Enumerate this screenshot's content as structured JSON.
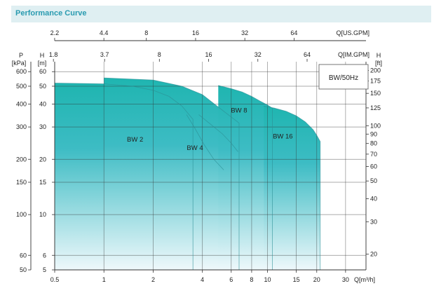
{
  "header": {
    "title": "Performance Curve"
  },
  "colors": {
    "fill_top": "#1fb5b0",
    "fill_bottom": "#eef8fb",
    "header_bg": "#dfeff2",
    "header_text": "#2a9bb0",
    "curve_line": "#2c8f94"
  },
  "chart_data": {
    "type": "area",
    "title": "",
    "legend_label": "BW/50Hz",
    "x_axis_bottom": {
      "label": "Q[m³/h]",
      "scale": "log",
      "ticks": [
        0.5,
        1,
        2,
        4,
        6,
        8,
        10,
        15,
        20,
        30
      ],
      "tick_labels": [
        "0.5",
        "1",
        "2",
        "4",
        "6",
        "8",
        "10",
        "15",
        "20",
        "30"
      ]
    },
    "x_axis_top_1": {
      "label": "Q[US.GPM]",
      "scale": "log",
      "ticks": [
        2.2,
        4.4,
        8,
        16,
        32,
        64
      ],
      "tick_labels": [
        "2.2",
        "4.4",
        "8",
        "16",
        "32",
        "64"
      ]
    },
    "x_axis_top_2": {
      "label": "Q[IM.GPM]",
      "scale": "log",
      "ticks": [
        1.8,
        3.7,
        8,
        16,
        32,
        64
      ],
      "tick_labels": [
        "1.8",
        "3.7",
        "8",
        "16",
        "32",
        "64"
      ]
    },
    "y_axis_left_m": {
      "label": "H",
      "unit": "[m]",
      "scale": "log",
      "ticks": [
        5,
        6,
        10,
        15,
        20,
        30,
        40,
        50,
        60
      ],
      "tick_labels": [
        "5",
        "6",
        "10",
        "15",
        "20",
        "30",
        "40",
        "50",
        "60"
      ]
    },
    "y_axis_left_kpa": {
      "label": "P",
      "unit": "[kPa]",
      "scale": "log",
      "ticks": [
        50,
        60,
        100,
        150,
        200,
        300,
        400,
        500,
        600
      ],
      "tick_labels": [
        "50",
        "60",
        "100",
        "150",
        "200",
        "300",
        "400",
        "500",
        "600"
      ]
    },
    "y_axis_right_ft": {
      "label": "H",
      "unit": "[ft]",
      "scale": "log",
      "ticks": [
        20,
        30,
        40,
        50,
        60,
        70,
        80,
        90,
        100,
        125,
        150,
        175,
        200
      ],
      "tick_labels": [
        "20",
        "30",
        "40",
        "50",
        "60",
        "70",
        "80",
        "90",
        "100",
        "125",
        "150",
        "175",
        "200"
      ]
    },
    "xlim": [
      0.5,
      40
    ],
    "ylim": [
      5,
      68
    ],
    "series": [
      {
        "name": "BW 2",
        "label_pos": {
          "q": 1.55,
          "h": 25
        },
        "q_min": 0.5,
        "q_max": 3.5,
        "curve": [
          [
            0.5,
            52
          ],
          [
            1,
            51.5
          ],
          [
            1.5,
            50
          ],
          [
            2,
            47.5
          ],
          [
            2.5,
            44
          ],
          [
            3,
            39
          ],
          [
            3.5,
            33
          ]
        ]
      },
      {
        "name": "BW 4",
        "label_pos": {
          "q": 3.6,
          "h": 22.5
        },
        "q_min": 1,
        "q_max": 6.7,
        "curve": [
          [
            1,
            55.5
          ],
          [
            2,
            54
          ],
          [
            3,
            50
          ],
          [
            4,
            45
          ],
          [
            5,
            38.5
          ],
          [
            6,
            34
          ],
          [
            6.7,
            31.5
          ]
        ]
      },
      {
        "name": "BW 8",
        "label_pos": {
          "q": 6.7,
          "h": 36
        },
        "q_min": 5,
        "q_max": 10.7,
        "curve": [
          [
            5,
            50.5
          ],
          [
            6,
            48.5
          ],
          [
            7,
            46.5
          ],
          [
            8,
            44
          ],
          [
            9,
            41.5
          ],
          [
            10,
            39.5
          ],
          [
            10.7,
            38
          ]
        ]
      },
      {
        "name": "BW 16",
        "label_pos": {
          "q": 12.4,
          "h": 26
        },
        "q_min": 9.5,
        "q_max": 21,
        "curve": [
          [
            9.5,
            39
          ],
          [
            11,
            38
          ],
          [
            13,
            36.5
          ],
          [
            15,
            34.5
          ],
          [
            17,
            32
          ],
          [
            19,
            29
          ],
          [
            20,
            27
          ],
          [
            21,
            25
          ]
        ]
      }
    ],
    "internal_curves": [
      {
        "points": [
          [
            3.2,
            35
          ],
          [
            3.6,
            29.5
          ],
          [
            4.1,
            24
          ],
          [
            4.7,
            20
          ],
          [
            5.4,
            17.5
          ]
        ]
      },
      {
        "points": [
          [
            3.8,
            35
          ],
          [
            4.5,
            31
          ],
          [
            5.3,
            27.5
          ],
          [
            6,
            24.5
          ],
          [
            6.6,
            22
          ]
        ]
      }
    ],
    "grid": true
  }
}
